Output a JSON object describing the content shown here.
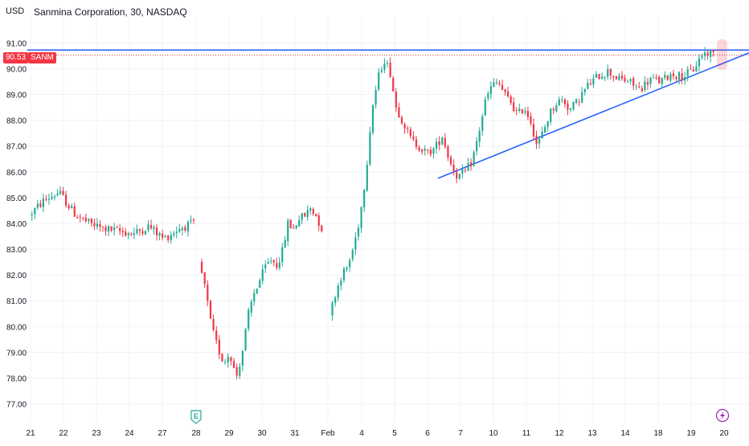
{
  "header": {
    "currency": "USD",
    "title": "Sanmina Corporation, 30, NASDAQ"
  },
  "last_price": {
    "value": "90.53",
    "symbol": "SANM",
    "level": 90.53
  },
  "markers": {
    "earnings_label": "E",
    "earnings_at": "28",
    "flash_icon": "lightning-icon",
    "flash_at": "20"
  },
  "colors": {
    "up": "#22ab94",
    "down": "#f23645",
    "trendline": "#2962ff",
    "grid": "#f0f3fa",
    "text": "#131722"
  },
  "chart_data": {
    "type": "candlestick",
    "title": "Sanmina Corporation, 30, NASDAQ",
    "ylabel": "USD",
    "ylim": [
      76.8,
      91.9
    ],
    "y_ticks": [
      "91.00",
      "90.00",
      "89.00",
      "88.00",
      "87.00",
      "86.00",
      "85.00",
      "84.00",
      "83.00",
      "82.00",
      "81.00",
      "80.00",
      "79.00",
      "78.00",
      "77.00"
    ],
    "x_ticks": [
      "21",
      "22",
      "23",
      "24",
      "27",
      "28",
      "29",
      "30",
      "31",
      "Feb",
      "4",
      "5",
      "6",
      "7",
      "10",
      "11",
      "12",
      "13",
      "14",
      "18",
      "19",
      "20"
    ],
    "grid": true,
    "segments": [
      {
        "start": 0.0,
        "end": 12.6,
        "wp": [
          84.3,
          84.9,
          85.2,
          84.4,
          84.0,
          83.8,
          83.7,
          83.6,
          83.9,
          83.4,
          83.8,
          84.0
        ]
      },
      {
        "start": 13.0,
        "end": 16.8,
        "wp": [
          82.5,
          81.5,
          80.0,
          79.2,
          78.6,
          79.0,
          78.0,
          79.0,
          80.5
        ]
      },
      {
        "start": 16.8,
        "end": 22.4,
        "wp": [
          80.5,
          81.3,
          81.8,
          82.3,
          82.6,
          82.4,
          82.9,
          84.0,
          83.8,
          84.2,
          84.3,
          84.6,
          84.3,
          83.8
        ]
      },
      {
        "start": 23.0,
        "end": 28.1,
        "wp": [
          80.4,
          81.3,
          82.0,
          82.3,
          83.1,
          84.2,
          85.9,
          88.4,
          89.6,
          90.4,
          89.9,
          88.5
        ]
      },
      {
        "start": 28.1,
        "end": 33.4,
        "wp": [
          88.5,
          87.9,
          87.2,
          87.0,
          86.7,
          86.9,
          87.4,
          86.4,
          85.8,
          86.0
        ]
      },
      {
        "start": 33.4,
        "end": 41.9,
        "wp": [
          86.0,
          86.4,
          87.4,
          88.7,
          89.3,
          89.5,
          89.0,
          88.7,
          88.2,
          88.5,
          88.0,
          87.0,
          87.6,
          88.3,
          88.7,
          88.8,
          88.4,
          88.7
        ]
      },
      {
        "start": 41.9,
        "end": 52.4,
        "wp": [
          88.7,
          89.3,
          89.7,
          89.9,
          89.6,
          89.5,
          89.2,
          89.6,
          89.5,
          89.8,
          89.7,
          89.9,
          90.6,
          90.6
        ]
      }
    ],
    "trendlines": [
      {
        "name": "resistance",
        "x": [
          0,
          52.4
        ],
        "y": [
          90.72,
          90.72
        ]
      },
      {
        "name": "support",
        "x": [
          31.2,
          52.4
        ],
        "y": [
          85.75,
          90.08
        ]
      }
    ]
  }
}
